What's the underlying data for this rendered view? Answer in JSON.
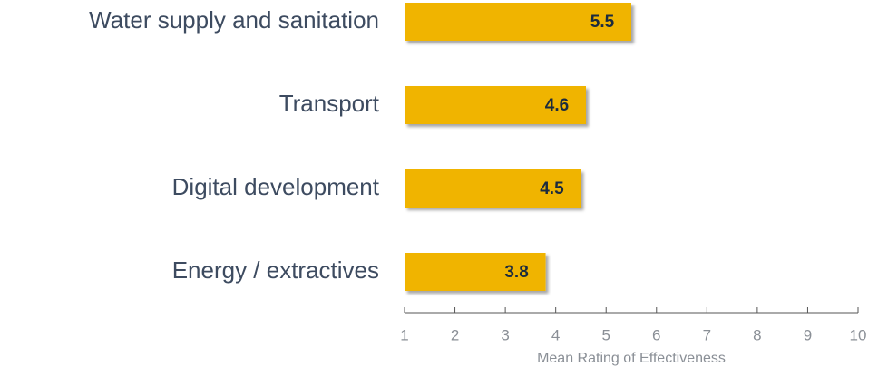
{
  "chart_data": {
    "type": "barh",
    "categories": [
      "Water supply and sanitation",
      "Transport",
      "Digital development",
      "Energy / extractives"
    ],
    "values": [
      5.5,
      4.6,
      4.5,
      3.8
    ],
    "color": "#f0b400",
    "xlabel": "Mean Rating of Effectiveness",
    "xlim": [
      1,
      10
    ],
    "xticks": [
      1,
      2,
      3,
      4,
      5,
      6,
      7,
      8,
      9,
      10
    ]
  }
}
